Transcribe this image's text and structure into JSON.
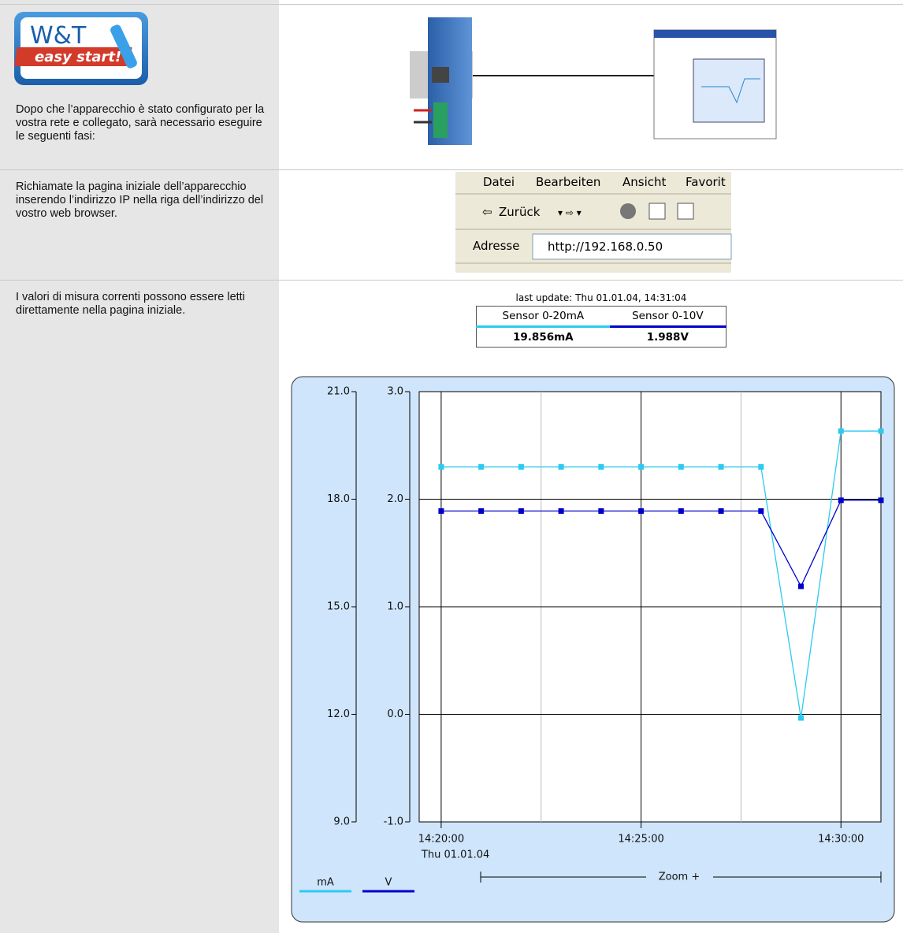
{
  "row1": {
    "logo": {
      "brand": "W&T",
      "tagline": "easy start!"
    },
    "text": "Dopo che l’apparecchio è stato configurato per la vostra rete e collegato, sarà necessario eseguire le seguenti fasi:"
  },
  "row2": {
    "text": "Richiamate la pagina iniziale dell’apparecchio inserendo l’indirizzo IP nella riga dell’indirizzo del vostro web browser.",
    "browser": {
      "menu": [
        "Datei",
        "Bearbeiten",
        "Ansicht",
        "Favorit"
      ],
      "back": "Zurück",
      "address_label": "Adresse",
      "url": "http://192.168.0.50"
    }
  },
  "row3": {
    "text": "I valori di misura correnti possono essere letti direttamente nella pagina iniziale.",
    "status": {
      "last_update": "last update: Thu 01.01.04, 14:31:04",
      "headers": [
        "Sensor 0-20mA",
        "Sensor 0-10V"
      ],
      "readings": [
        "19.856mA",
        "1.988V"
      ]
    }
  },
  "chart_data": {
    "type": "line",
    "x": [
      "14:20:00",
      "14:21:00",
      "14:22:00",
      "14:23:00",
      "14:24:00",
      "14:25:00",
      "14:26:00",
      "14:27:00",
      "14:28:00",
      "14:29:00",
      "14:30:00",
      "14:31:00"
    ],
    "xlim": [
      "14:19:27",
      "14:31:00"
    ],
    "xticks": [
      "14:20:00",
      "14:25:00",
      "14:30:00"
    ],
    "x_date_label": "Thu 01.01.04",
    "ylim": [
      9,
      21
    ],
    "yticks": [
      {
        "value": 9,
        "label": "9.0"
      },
      {
        "value": 12,
        "label": "12.0"
      },
      {
        "value": 15,
        "label": "15.0"
      },
      {
        "value": 18,
        "label": "18.0"
      },
      {
        "value": 21,
        "label": "21.0"
      }
    ],
    "y2lim": [
      -1,
      3
    ],
    "y2ticks": [
      {
        "value": -1,
        "label": "-1.0"
      },
      {
        "value": 0,
        "label": "0.0"
      },
      {
        "value": 1,
        "label": "1.0"
      },
      {
        "value": 2,
        "label": "2.0"
      },
      {
        "value": 3,
        "label": "3.0"
      }
    ],
    "grid": true,
    "zoom_label": "Zoom +",
    "series": [
      {
        "name": "mA",
        "color": "#2ccaf0",
        "values": [
          18.9,
          18.9,
          18.9,
          18.9,
          18.9,
          18.9,
          18.9,
          18.9,
          18.9,
          11.9,
          19.9,
          19.9
        ]
      },
      {
        "name": "V",
        "color": "#0000cc",
        "axis": "y2",
        "values": [
          1.89,
          1.89,
          1.89,
          1.89,
          1.89,
          1.89,
          1.89,
          1.89,
          1.89,
          1.19,
          1.99,
          1.99
        ]
      }
    ]
  }
}
